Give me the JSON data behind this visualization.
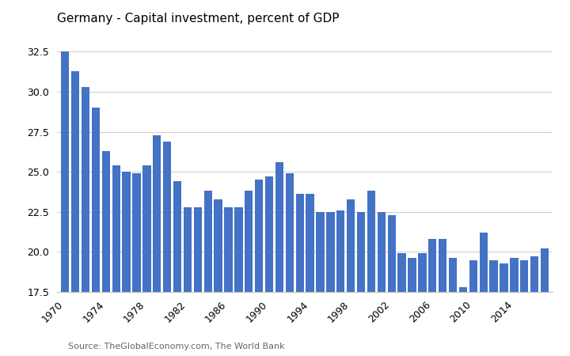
{
  "title": "Germany - Capital investment, percent of GDP",
  "source": "Source: TheGlobalEconomy.com, The World Bank",
  "bar_color": "#4472C4",
  "background_color": "#ffffff",
  "years": [
    1970,
    1971,
    1972,
    1973,
    1974,
    1975,
    1976,
    1977,
    1978,
    1979,
    1980,
    1981,
    1982,
    1983,
    1984,
    1985,
    1986,
    1987,
    1988,
    1989,
    1990,
    1991,
    1992,
    1993,
    1994,
    1995,
    1996,
    1997,
    1998,
    1999,
    2000,
    2001,
    2002,
    2003,
    2004,
    2005,
    2006,
    2007,
    2008,
    2009,
    2010,
    2011,
    2012,
    2013,
    2014,
    2015,
    2016,
    2017
  ],
  "values": [
    32.5,
    31.3,
    30.3,
    29.0,
    26.3,
    25.4,
    25.0,
    24.9,
    25.4,
    27.3,
    26.9,
    24.4,
    22.8,
    22.8,
    23.8,
    23.3,
    22.8,
    22.8,
    23.8,
    24.5,
    24.7,
    25.6,
    24.9,
    23.6,
    23.6,
    22.5,
    22.5,
    22.6,
    23.3,
    22.5,
    23.8,
    22.5,
    22.3,
    19.9,
    19.6,
    19.9,
    20.8,
    20.8,
    19.6,
    17.8,
    19.5,
    21.2,
    19.5,
    19.3,
    19.6,
    19.5,
    19.7,
    20.2
  ],
  "ylim": [
    17.5,
    33.5
  ],
  "yticks": [
    17.5,
    20.0,
    22.5,
    25.0,
    27.5,
    30.0,
    32.5
  ],
  "xtick_years": [
    1970,
    1974,
    1978,
    1982,
    1986,
    1990,
    1994,
    1998,
    2002,
    2006,
    2010,
    2014
  ]
}
